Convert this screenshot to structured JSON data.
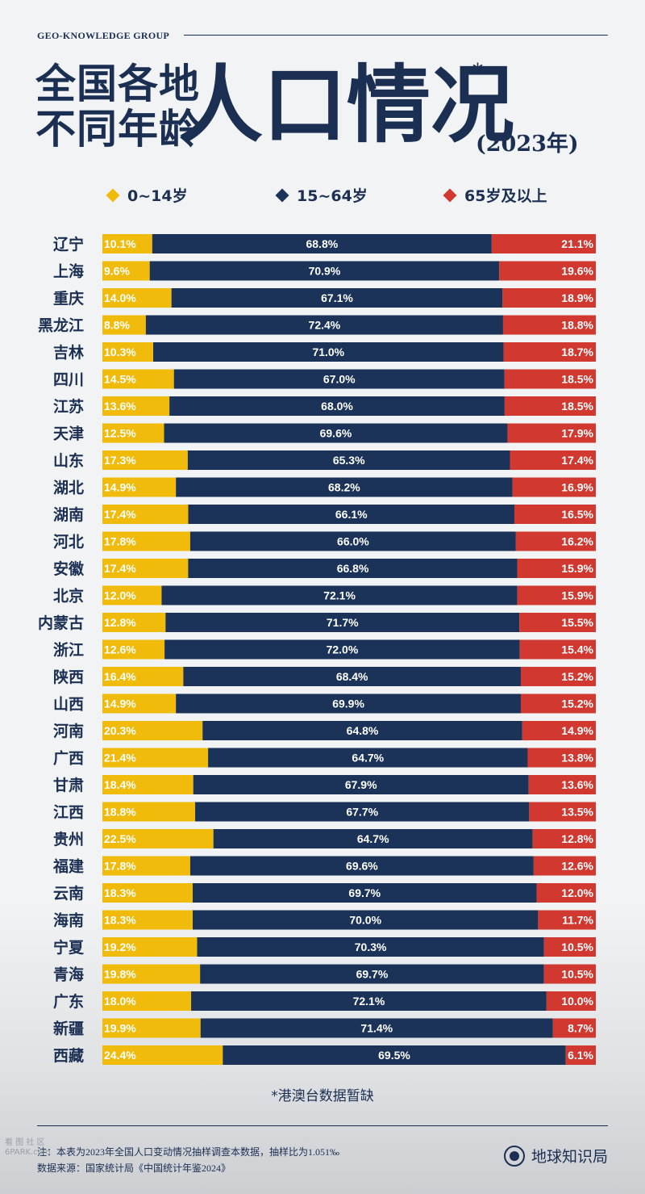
{
  "header": {
    "brand": "GEO-KNOWLEDGE GROUP",
    "title_line1": "全国各地",
    "title_line2": "不同年龄",
    "title_main": "人口情况",
    "title_star": "*",
    "title_year": "(2023年)"
  },
  "legend": [
    {
      "label": "0~14岁",
      "color": "#f1bb0c"
    },
    {
      "label": "15~64岁",
      "color": "#1b3358"
    },
    {
      "label": "65岁及以上",
      "color": "#d1382f"
    }
  ],
  "chart_data": {
    "type": "bar",
    "stacked": true,
    "orientation": "horizontal",
    "categories": [
      "辽宁",
      "上海",
      "重庆",
      "黑龙江",
      "吉林",
      "四川",
      "江苏",
      "天津",
      "山东",
      "湖北",
      "湖南",
      "河北",
      "安徽",
      "北京",
      "内蒙古",
      "浙江",
      "陕西",
      "山西",
      "河南",
      "广西",
      "甘肃",
      "江西",
      "贵州",
      "福建",
      "云南",
      "海南",
      "宁夏",
      "青海",
      "广东",
      "新疆",
      "西藏"
    ],
    "series": [
      {
        "name": "0~14岁",
        "color": "#f1bb0c",
        "values": [
          10.1,
          9.6,
          14.0,
          8.8,
          10.3,
          14.5,
          13.6,
          12.5,
          17.3,
          14.9,
          17.4,
          17.8,
          17.4,
          12.0,
          12.8,
          12.6,
          16.4,
          14.9,
          20.3,
          21.4,
          18.4,
          18.8,
          22.5,
          17.8,
          18.3,
          18.3,
          19.2,
          19.8,
          18.0,
          19.9,
          24.4
        ]
      },
      {
        "name": "15~64岁",
        "color": "#1b3358",
        "values": [
          68.8,
          70.9,
          67.1,
          72.4,
          71.0,
          67.0,
          68.0,
          69.6,
          65.3,
          68.2,
          66.1,
          66.0,
          66.8,
          72.1,
          71.7,
          72.0,
          68.4,
          69.9,
          64.8,
          64.7,
          67.9,
          67.7,
          64.7,
          69.6,
          69.7,
          70.0,
          70.3,
          69.7,
          72.1,
          71.4,
          69.5
        ]
      },
      {
        "name": "65岁及以上",
        "color": "#d1382f",
        "values": [
          21.1,
          19.6,
          18.9,
          18.8,
          18.7,
          18.5,
          18.5,
          17.9,
          17.4,
          16.9,
          16.5,
          16.2,
          15.9,
          15.9,
          15.5,
          15.4,
          15.2,
          15.2,
          14.9,
          13.8,
          13.6,
          13.5,
          12.8,
          12.6,
          12.0,
          11.7,
          10.5,
          10.5,
          10.0,
          8.7,
          6.1
        ]
      }
    ],
    "value_suffix": "%"
  },
  "note": "*港澳台数据暂缺",
  "footer": {
    "line1": "注：本表为2023年全国人口变动情况抽样调查本数据，抽样比为1.051‰",
    "line2": "数据来源：国家统计局《中国统计年鉴2024》",
    "logo_text": "地球知识局",
    "watermark_line1": "看 图 社 区",
    "watermark_line2": "6PARK.com"
  }
}
